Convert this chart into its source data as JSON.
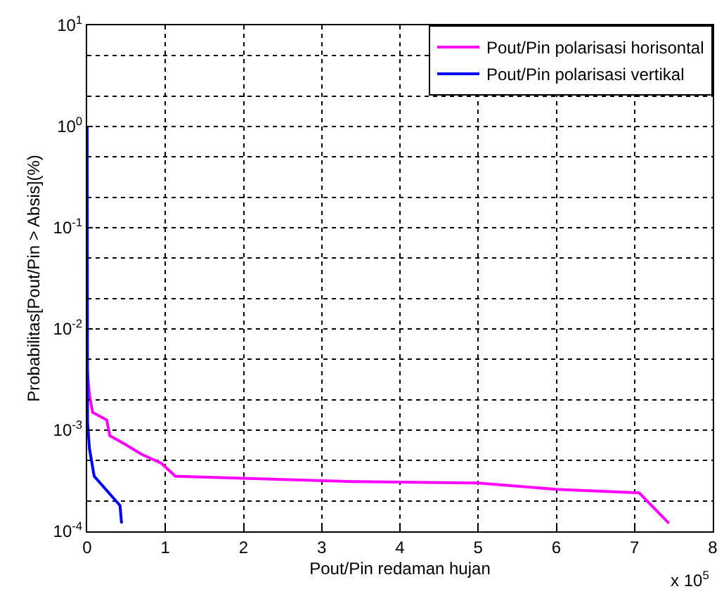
{
  "chart_data": {
    "type": "line",
    "xlabel": "Pout/Pin redaman hujan",
    "ylabel": "Probabilitas[Pout/Pin > Absis](%)",
    "annotations": [
      "x 10$^{5}$"
    ],
    "series": [
      {
        "name": "Pout/Pin polarisasi horisontal",
        "color": "#ff00ff",
        "x": [
          0,
          0.03,
          0.07,
          0.25,
          0.29,
          0.48,
          0.69,
          0.95,
          1.13,
          3.41,
          5,
          6.0,
          7.06,
          7.44
        ],
        "values": [
          0.004,
          0.0022,
          0.0015,
          0.00126,
          0.00088,
          0.00073,
          0.00058,
          0.00047,
          0.00035,
          0.00031,
          0.0003,
          0.00026,
          0.00024,
          0.00012
        ]
      },
      {
        "name": "Pout/Pin polarisasi vertikal",
        "color": "#0000ff",
        "x": [
          0,
          0.005,
          0.03,
          0.09,
          0.42,
          0.44
        ],
        "values": [
          1,
          0.0012,
          0.00065,
          0.00035,
          0.00018,
          0.00012
        ]
      }
    ],
    "log": "y",
    "xlim": [
      0,
      8
    ],
    "xticks": [
      0,
      1,
      2,
      3,
      4,
      5,
      6,
      7,
      8
    ],
    "ylim": [
      0.0001,
      10
    ],
    "yticks": [
      {
        "value": 0.0001,
        "label": "10$^{-4}$"
      },
      {
        "value": 0.001,
        "label": "10$^{-3}$"
      },
      {
        "value": 0.01,
        "label": "10$^{-2}$"
      },
      {
        "value": 0.1,
        "label": "10$^{-1}$"
      },
      {
        "value": 1,
        "label": "10$^{0}$"
      },
      {
        "value": 10,
        "label": "10$^{1}$"
      }
    ],
    "grid": true,
    "legend": "top right",
    "line_style": "solid",
    "marker": "none"
  }
}
